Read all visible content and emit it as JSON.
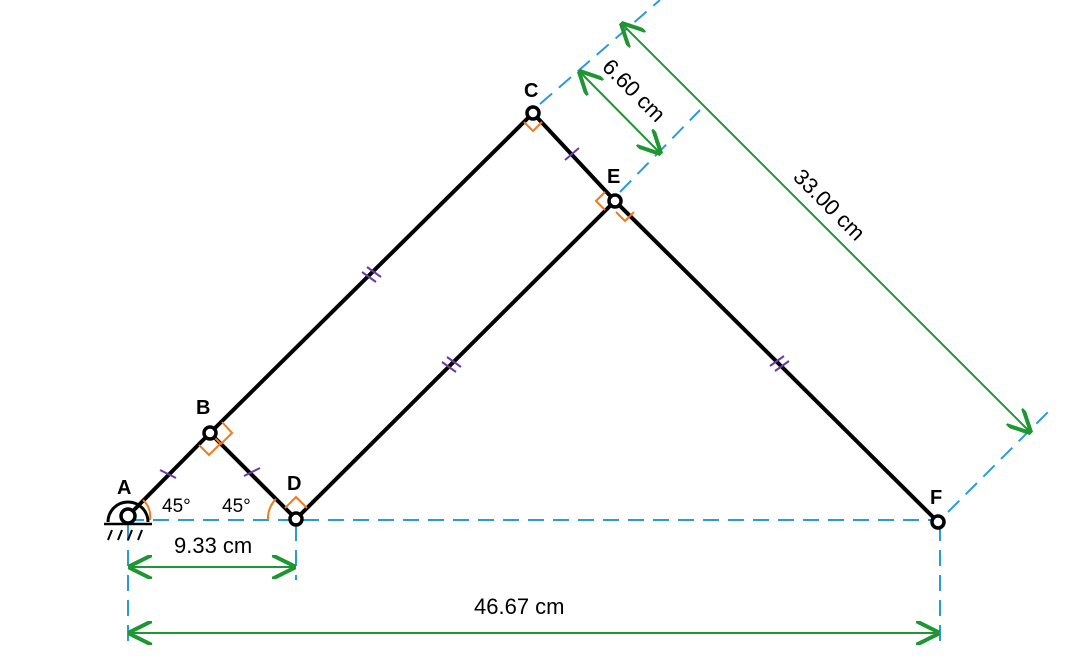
{
  "points": {
    "A": "A",
    "B": "B",
    "C": "C",
    "D": "D",
    "E": "E",
    "F": "F"
  },
  "angles": {
    "at_A": "45°",
    "at_D": "45°"
  },
  "dimensions": {
    "AD": "9.33 cm",
    "AF": "46.67 cm",
    "CE": "6.60 cm",
    "CF": "33.00 cm"
  },
  "colors": {
    "links": "#000000",
    "construction_lines": "#2a9bd4",
    "dimension_lines": "#1e9632",
    "equal_ticks": "#6a3aa8",
    "angle_marks": "#f07a1e"
  }
}
